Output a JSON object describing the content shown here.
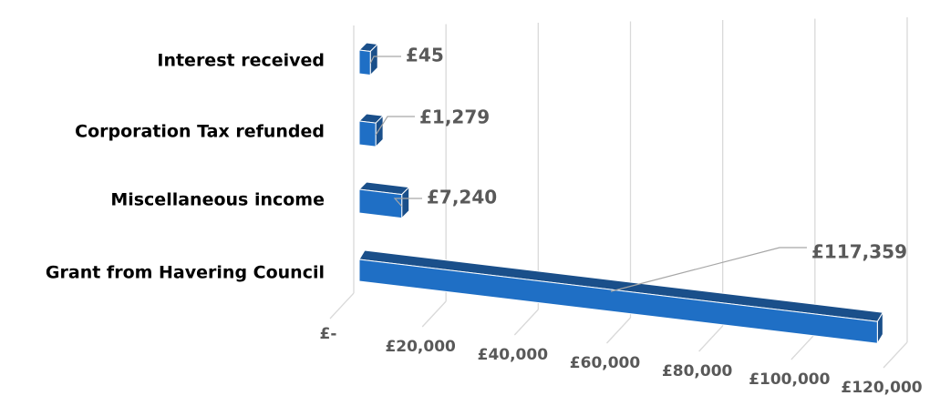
{
  "chart_data": {
    "type": "bar3d",
    "categories": [
      "Interest received",
      "Corporation Tax refunded",
      "Miscellaneous income",
      "Grant from Havering Council"
    ],
    "values": [
      45,
      1279,
      7240,
      117359
    ],
    "value_labels": [
      "£45",
      "£1,279",
      "£7,240",
      "£117,359"
    ],
    "color": "#1f6fc5",
    "xlim": [
      0,
      120000
    ],
    "xticks": [
      {
        "value": 0,
        "label": "£-"
      },
      {
        "value": 20000,
        "label": "£20,000"
      },
      {
        "value": 40000,
        "label": "£40,000"
      },
      {
        "value": 60000,
        "label": "£60,000"
      },
      {
        "value": 80000,
        "label": "£80,000"
      },
      {
        "value": 100000,
        "label": "£100,000"
      },
      {
        "value": 120000,
        "label": "£120,000"
      }
    ],
    "grid": true
  }
}
